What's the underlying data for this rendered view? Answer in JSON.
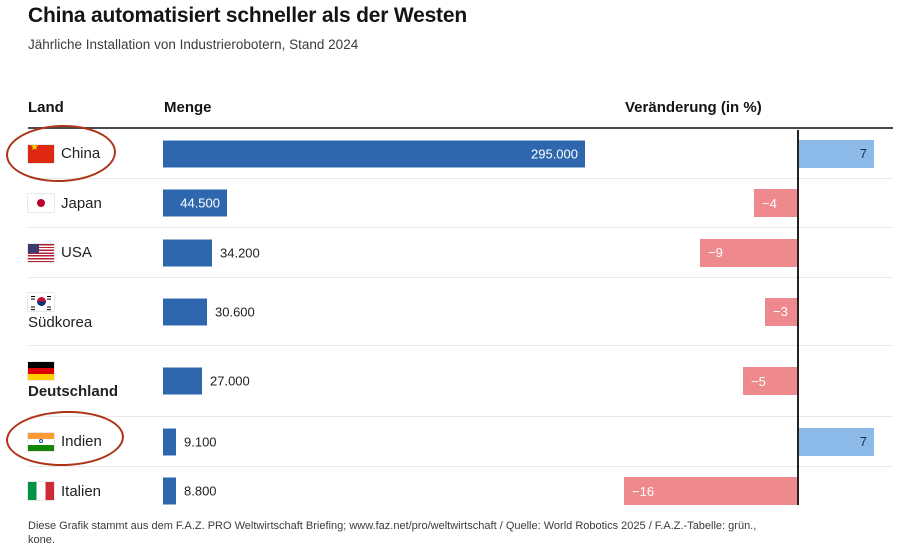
{
  "chart_data": {
    "type": "bar",
    "title": "China automatisiert schneller als der Westen",
    "subtitle": "Jährliche Installation von Industrierobotern, Stand 2024",
    "columns": {
      "land": "Land",
      "menge": "Menge",
      "veraenderung": "Veränderung (in %)"
    },
    "rows": [
      {
        "country": "China",
        "flag": "china",
        "amount": 295000,
        "amount_label": "295.000",
        "change": 7,
        "change_label": "7",
        "label_inside": true,
        "stacked": false,
        "bold": false,
        "annotated": true
      },
      {
        "country": "Japan",
        "flag": "japan",
        "amount": 44500,
        "amount_label": "44.500",
        "change": -4,
        "change_label": "−4",
        "label_inside": true,
        "stacked": false,
        "bold": false,
        "annotated": false
      },
      {
        "country": "USA",
        "flag": "usa",
        "amount": 34200,
        "amount_label": "34.200",
        "change": -9,
        "change_label": "−9",
        "label_inside": false,
        "stacked": false,
        "bold": false,
        "annotated": false
      },
      {
        "country": "Südkorea",
        "flag": "suedkorea",
        "amount": 30600,
        "amount_label": "30.600",
        "change": -3,
        "change_label": "−3",
        "label_inside": false,
        "stacked": true,
        "bold": false,
        "annotated": false
      },
      {
        "country": "Deutschland",
        "flag": "deutschland",
        "amount": 27000,
        "amount_label": "27.000",
        "change": -5,
        "change_label": "−5",
        "label_inside": false,
        "stacked": true,
        "bold": true,
        "annotated": false
      },
      {
        "country": "Indien",
        "flag": "indien",
        "amount": 9100,
        "amount_label": "9.100",
        "change": 7,
        "change_label": "7",
        "label_inside": false,
        "stacked": false,
        "bold": false,
        "annotated": true
      },
      {
        "country": "Italien",
        "flag": "italien",
        "amount": 8800,
        "amount_label": "8.800",
        "change": -16,
        "change_label": "−16",
        "label_inside": false,
        "stacked": false,
        "bold": false,
        "annotated": false
      }
    ],
    "colors": {
      "bar_blue": "#2f67ae",
      "change_positive": "#8cbae8",
      "change_negative": "#ee8a8e",
      "annotation_red": "#ad3317"
    },
    "layout_hints": {
      "menge_axis_max_value": 295000,
      "change_axis": "zero line between negative (left) and positive (right) bars",
      "grid": "off"
    },
    "annotations": [
      "China",
      "Indien"
    ],
    "footer": {
      "line1": "Diese Grafik stammt aus dem F.A.Z. PRO Weltwirtschaft Briefing; www.faz.net/pro/weltwirtschaft / Quelle: World Robotics 2025 / F.A.Z.-Tabelle: grün.,",
      "line2": "kone."
    }
  }
}
